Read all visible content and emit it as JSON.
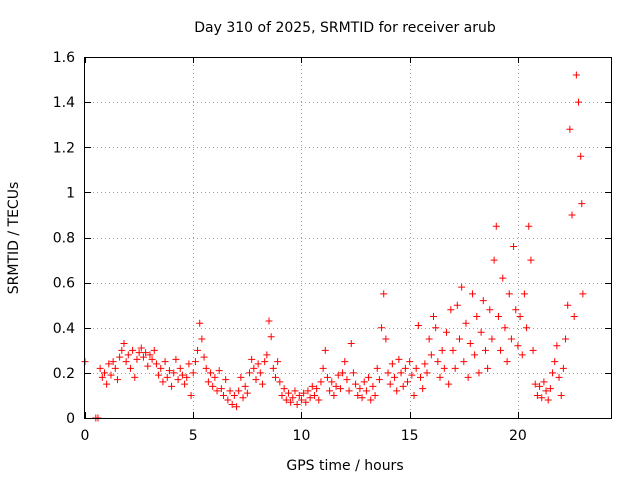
{
  "chart_data": {
    "type": "scatter",
    "title": "Day 310 of 2025, SRMTID for receiver arub",
    "xlabel": "GPS time / hours",
    "ylabel": "SRMTID / TECUs",
    "xlim": [
      0,
      24.3
    ],
    "ylim": [
      0,
      1.6
    ],
    "xticks": [
      0,
      5,
      10,
      15,
      20
    ],
    "yticks": [
      0,
      0.2,
      0.4,
      0.6,
      0.8,
      1,
      1.2,
      1.4,
      1.6
    ],
    "xtick_labels": [
      "0",
      "5",
      "10",
      "15",
      "20"
    ],
    "ytick_labels": [
      "0",
      "0.2",
      "0.4",
      "0.6",
      "0.8",
      "1",
      "1.2",
      "1.4",
      "1.6"
    ],
    "grid": true,
    "marker": "+",
    "color": "#ff0000",
    "series": [
      {
        "name": "SRMTID",
        "points": [
          [
            0.0,
            0.25
          ],
          [
            0.5,
            0.0
          ],
          [
            0.6,
            0.0
          ],
          [
            0.7,
            0.22
          ],
          [
            0.8,
            0.18
          ],
          [
            0.9,
            0.2
          ],
          [
            1.0,
            0.15
          ],
          [
            1.1,
            0.24
          ],
          [
            1.2,
            0.19
          ],
          [
            1.3,
            0.25
          ],
          [
            1.4,
            0.22
          ],
          [
            1.5,
            0.17
          ],
          [
            1.6,
            0.27
          ],
          [
            1.7,
            0.3
          ],
          [
            1.8,
            0.33
          ],
          [
            1.9,
            0.25
          ],
          [
            2.0,
            0.28
          ],
          [
            2.1,
            0.22
          ],
          [
            2.2,
            0.3
          ],
          [
            2.3,
            0.18
          ],
          [
            2.4,
            0.26
          ],
          [
            2.5,
            0.29
          ],
          [
            2.6,
            0.31
          ],
          [
            2.7,
            0.27
          ],
          [
            2.8,
            0.29
          ],
          [
            2.9,
            0.23
          ],
          [
            3.0,
            0.28
          ],
          [
            3.1,
            0.26
          ],
          [
            3.2,
            0.3
          ],
          [
            3.3,
            0.24
          ],
          [
            3.4,
            0.19
          ],
          [
            3.5,
            0.22
          ],
          [
            3.6,
            0.16
          ],
          [
            3.7,
            0.25
          ],
          [
            3.8,
            0.18
          ],
          [
            3.9,
            0.21
          ],
          [
            4.0,
            0.14
          ],
          [
            4.1,
            0.2
          ],
          [
            4.2,
            0.26
          ],
          [
            4.3,
            0.17
          ],
          [
            4.4,
            0.22
          ],
          [
            4.5,
            0.19
          ],
          [
            4.6,
            0.15
          ],
          [
            4.7,
            0.18
          ],
          [
            4.8,
            0.24
          ],
          [
            4.9,
            0.1
          ],
          [
            5.0,
            0.2
          ],
          [
            5.1,
            0.25
          ],
          [
            5.2,
            0.3
          ],
          [
            5.3,
            0.42
          ],
          [
            5.4,
            0.35
          ],
          [
            5.5,
            0.27
          ],
          [
            5.6,
            0.22
          ],
          [
            5.7,
            0.16
          ],
          [
            5.8,
            0.2
          ],
          [
            5.9,
            0.14
          ],
          [
            6.0,
            0.18
          ],
          [
            6.1,
            0.12
          ],
          [
            6.2,
            0.21
          ],
          [
            6.3,
            0.13
          ],
          [
            6.4,
            0.1
          ],
          [
            6.5,
            0.17
          ],
          [
            6.6,
            0.08
          ],
          [
            6.7,
            0.12
          ],
          [
            6.8,
            0.06
          ],
          [
            6.9,
            0.1
          ],
          [
            7.0,
            0.05
          ],
          [
            7.1,
            0.12
          ],
          [
            7.2,
            0.18
          ],
          [
            7.3,
            0.09
          ],
          [
            7.4,
            0.14
          ],
          [
            7.5,
            0.11
          ],
          [
            7.6,
            0.2
          ],
          [
            7.7,
            0.26
          ],
          [
            7.8,
            0.22
          ],
          [
            7.9,
            0.17
          ],
          [
            8.0,
            0.24
          ],
          [
            8.1,
            0.2
          ],
          [
            8.2,
            0.15
          ],
          [
            8.3,
            0.25
          ],
          [
            8.4,
            0.28
          ],
          [
            8.5,
            0.43
          ],
          [
            8.6,
            0.36
          ],
          [
            8.7,
            0.22
          ],
          [
            8.8,
            0.18
          ],
          [
            8.9,
            0.25
          ],
          [
            9.0,
            0.16
          ],
          [
            9.1,
            0.1
          ],
          [
            9.2,
            0.13
          ],
          [
            9.3,
            0.08
          ],
          [
            9.4,
            0.11
          ],
          [
            9.5,
            0.07
          ],
          [
            9.6,
            0.09
          ],
          [
            9.7,
            0.12
          ],
          [
            9.8,
            0.06
          ],
          [
            9.9,
            0.1
          ],
          [
            10.0,
            0.08
          ],
          [
            10.1,
            0.11
          ],
          [
            10.2,
            0.07
          ],
          [
            10.3,
            0.12
          ],
          [
            10.4,
            0.09
          ],
          [
            10.5,
            0.14
          ],
          [
            10.6,
            0.1
          ],
          [
            10.7,
            0.13
          ],
          [
            10.8,
            0.08
          ],
          [
            10.9,
            0.16
          ],
          [
            11.0,
            0.22
          ],
          [
            11.1,
            0.3
          ],
          [
            11.2,
            0.18
          ],
          [
            11.3,
            0.12
          ],
          [
            11.4,
            0.16
          ],
          [
            11.5,
            0.1
          ],
          [
            11.6,
            0.14
          ],
          [
            11.7,
            0.19
          ],
          [
            11.8,
            0.13
          ],
          [
            11.9,
            0.2
          ],
          [
            12.0,
            0.25
          ],
          [
            12.1,
            0.17
          ],
          [
            12.2,
            0.12
          ],
          [
            12.3,
            0.33
          ],
          [
            12.4,
            0.2
          ],
          [
            12.5,
            0.15
          ],
          [
            12.6,
            0.1
          ],
          [
            12.7,
            0.13
          ],
          [
            12.8,
            0.09
          ],
          [
            12.9,
            0.16
          ],
          [
            13.0,
            0.12
          ],
          [
            13.1,
            0.18
          ],
          [
            13.2,
            0.08
          ],
          [
            13.3,
            0.14
          ],
          [
            13.4,
            0.1
          ],
          [
            13.5,
            0.22
          ],
          [
            13.6,
            0.17
          ],
          [
            13.7,
            0.4
          ],
          [
            13.8,
            0.55
          ],
          [
            13.9,
            0.35
          ],
          [
            14.0,
            0.2
          ],
          [
            14.1,
            0.15
          ],
          [
            14.2,
            0.24
          ],
          [
            14.3,
            0.18
          ],
          [
            14.4,
            0.12
          ],
          [
            14.5,
            0.26
          ],
          [
            14.6,
            0.2
          ],
          [
            14.7,
            0.14
          ],
          [
            14.8,
            0.22
          ],
          [
            14.9,
            0.16
          ],
          [
            15.0,
            0.25
          ],
          [
            15.1,
            0.19
          ],
          [
            15.2,
            0.1
          ],
          [
            15.3,
            0.22
          ],
          [
            15.4,
            0.41
          ],
          [
            15.5,
            0.18
          ],
          [
            15.6,
            0.13
          ],
          [
            15.7,
            0.24
          ],
          [
            15.8,
            0.2
          ],
          [
            15.9,
            0.35
          ],
          [
            16.0,
            0.28
          ],
          [
            16.1,
            0.45
          ],
          [
            16.2,
            0.4
          ],
          [
            16.3,
            0.25
          ],
          [
            16.4,
            0.18
          ],
          [
            16.5,
            0.3
          ],
          [
            16.6,
            0.22
          ],
          [
            16.7,
            0.38
          ],
          [
            16.8,
            0.15
          ],
          [
            16.9,
            0.48
          ],
          [
            17.0,
            0.3
          ],
          [
            17.1,
            0.22
          ],
          [
            17.2,
            0.5
          ],
          [
            17.3,
            0.35
          ],
          [
            17.4,
            0.58
          ],
          [
            17.5,
            0.25
          ],
          [
            17.6,
            0.42
          ],
          [
            17.7,
            0.18
          ],
          [
            17.8,
            0.33
          ],
          [
            17.9,
            0.55
          ],
          [
            18.0,
            0.28
          ],
          [
            18.1,
            0.45
          ],
          [
            18.2,
            0.2
          ],
          [
            18.3,
            0.38
          ],
          [
            18.4,
            0.52
          ],
          [
            18.5,
            0.3
          ],
          [
            18.6,
            0.22
          ],
          [
            18.7,
            0.48
          ],
          [
            18.8,
            0.35
          ],
          [
            18.9,
            0.7
          ],
          [
            19.0,
            0.85
          ],
          [
            19.1,
            0.45
          ],
          [
            19.2,
            0.3
          ],
          [
            19.3,
            0.62
          ],
          [
            19.4,
            0.4
          ],
          [
            19.5,
            0.25
          ],
          [
            19.6,
            0.55
          ],
          [
            19.7,
            0.35
          ],
          [
            19.8,
            0.76
          ],
          [
            19.9,
            0.48
          ],
          [
            20.0,
            0.32
          ],
          [
            20.1,
            0.45
          ],
          [
            20.2,
            0.28
          ],
          [
            20.3,
            0.55
          ],
          [
            20.4,
            0.4
          ],
          [
            20.5,
            0.85
          ],
          [
            20.6,
            0.7
          ],
          [
            20.7,
            0.3
          ],
          [
            20.8,
            0.15
          ],
          [
            20.9,
            0.1
          ],
          [
            21.0,
            0.14
          ],
          [
            21.1,
            0.09
          ],
          [
            21.2,
            0.16
          ],
          [
            21.3,
            0.12
          ],
          [
            21.4,
            0.08
          ],
          [
            21.5,
            0.13
          ],
          [
            21.6,
            0.2
          ],
          [
            21.7,
            0.25
          ],
          [
            21.8,
            0.32
          ],
          [
            21.9,
            0.18
          ],
          [
            22.0,
            0.1
          ],
          [
            22.1,
            0.22
          ],
          [
            22.2,
            0.35
          ],
          [
            22.3,
            0.5
          ],
          [
            22.4,
            1.28
          ],
          [
            22.5,
            0.9
          ],
          [
            22.6,
            0.45
          ],
          [
            22.7,
            1.52
          ],
          [
            22.8,
            1.4
          ],
          [
            22.9,
            1.16
          ],
          [
            22.95,
            0.95
          ],
          [
            23.0,
            0.55
          ]
        ]
      }
    ]
  }
}
